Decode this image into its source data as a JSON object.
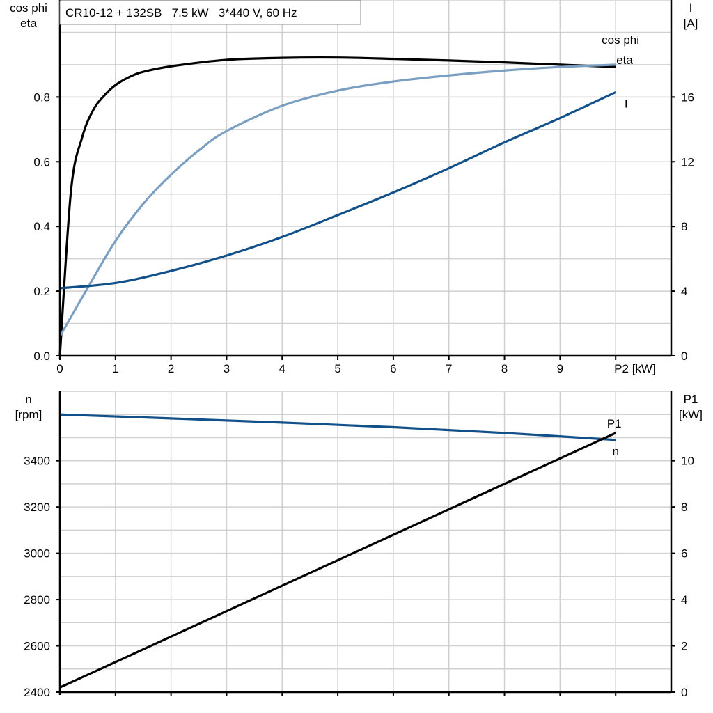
{
  "chart_data": [
    {
      "type": "line",
      "title": "CR10-12 + 132SB   7.5 kW   3*440 V, 60 Hz",
      "xlabel": "P2 [kW]",
      "ylabel_left": [
        "cos phi",
        "eta"
      ],
      "ylabel_right": [
        "I",
        "[A]"
      ],
      "xlim": [
        0,
        11
      ],
      "ylim_left": [
        0,
        1.1
      ],
      "ylim_right": [
        0,
        22
      ],
      "x_ticks": [
        "0",
        "1",
        "2",
        "3",
        "4",
        "5",
        "6",
        "7",
        "8",
        "9"
      ],
      "y_ticks_left": [
        "0.0",
        "0.2",
        "0.4",
        "0.6",
        "0.8"
      ],
      "y_ticks_right": [
        "0",
        "4",
        "8",
        "12",
        "16"
      ],
      "grid": true,
      "series": [
        {
          "name": "eta",
          "axis": "left",
          "color": "#000000",
          "x": [
            0,
            0.2,
            0.4,
            0.6,
            0.8,
            1,
            1.25,
            1.5,
            2,
            3,
            4,
            5,
            6,
            7,
            8,
            9,
            10
          ],
          "y": [
            0,
            0.51,
            0.675,
            0.76,
            0.805,
            0.837,
            0.862,
            0.878,
            0.895,
            0.915,
            0.921,
            0.922,
            0.918,
            0.913,
            0.907,
            0.9,
            0.893
          ]
        },
        {
          "name": "cos phi",
          "axis": "left",
          "color": "#7a9fc2",
          "x": [
            0,
            0.5,
            1,
            1.5,
            2,
            2.5,
            3,
            4,
            5,
            6,
            7,
            8,
            9,
            10
          ],
          "y": [
            0.06,
            0.21,
            0.355,
            0.47,
            0.56,
            0.635,
            0.695,
            0.773,
            0.82,
            0.848,
            0.867,
            0.882,
            0.893,
            0.9
          ]
        },
        {
          "name": "I",
          "axis": "right",
          "color": "#12508a",
          "x": [
            0,
            1,
            2,
            3,
            4,
            5,
            6,
            7,
            8,
            9,
            10
          ],
          "y": [
            4.18,
            4.5,
            5.25,
            6.2,
            7.35,
            8.7,
            10.1,
            11.6,
            13.2,
            14.7,
            16.3
          ]
        }
      ]
    },
    {
      "type": "line",
      "xlabel": "",
      "ylabel_left": [
        "n",
        "[rpm]"
      ],
      "ylabel_right": [
        "P1",
        "[kW]"
      ],
      "xlim": [
        0,
        11
      ],
      "ylim_left": [
        2400,
        3700
      ],
      "ylim_right": [
        0,
        13
      ],
      "y_ticks_left": [
        "2400",
        "2600",
        "2800",
        "3000",
        "3200",
        "3400"
      ],
      "y_ticks_right": [
        "0",
        "2",
        "4",
        "6",
        "8",
        "10"
      ],
      "grid": true,
      "series": [
        {
          "name": "n",
          "axis": "left",
          "color": "#12508a",
          "x": [
            0,
            2,
            4,
            6,
            8,
            10
          ],
          "y": [
            3600,
            3583,
            3565,
            3545,
            3520,
            3490
          ]
        },
        {
          "name": "P1",
          "axis": "right",
          "color": "#000000",
          "x": [
            0,
            10
          ],
          "y": [
            0.2,
            11.2
          ]
        }
      ]
    }
  ]
}
